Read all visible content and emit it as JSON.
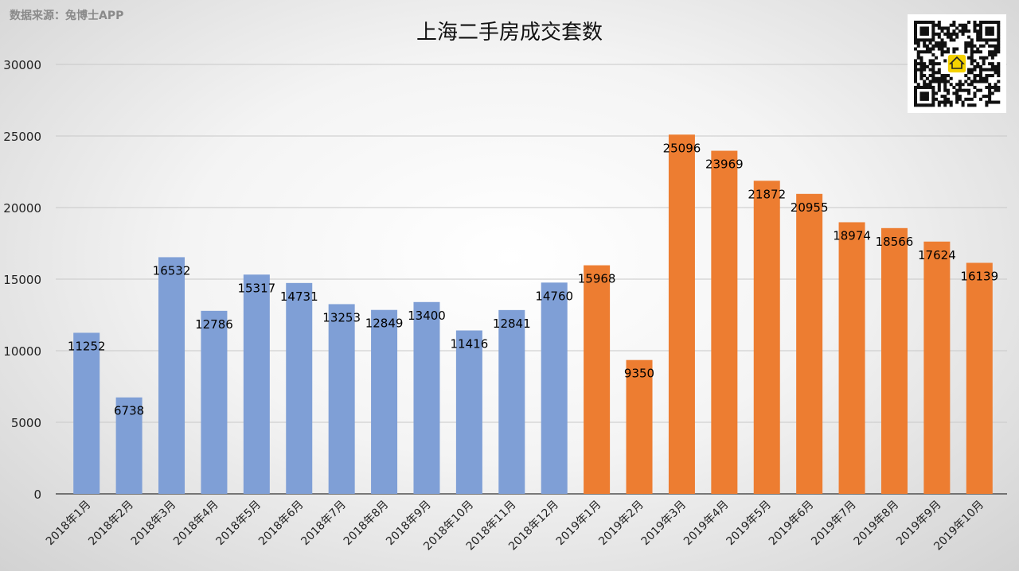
{
  "source_note": "数据来源：兔博士APP",
  "qr_code": {
    "icon": "qr-code-with-house-logo",
    "logo_color": "#f5d200"
  },
  "chart_data": {
    "type": "bar",
    "title": "上海二手房成交套数",
    "xlabel": "",
    "ylabel": "",
    "ylim": [
      0,
      30000
    ],
    "yticks": [
      0,
      5000,
      10000,
      15000,
      20000,
      25000,
      30000
    ],
    "grid": true,
    "categories": [
      "2018年1月",
      "2018年2月",
      "2018年3月",
      "2018年4月",
      "2018年5月",
      "2018年6月",
      "2018年7月",
      "2018年8月",
      "2018年9月",
      "2018年10月",
      "2018年11月",
      "2018年12月",
      "2019年1月",
      "2019年2月",
      "2019年3月",
      "2019年4月",
      "2019年5月",
      "2019年6月",
      "2019年7月",
      "2019年8月",
      "2019年9月",
      "2019年10月"
    ],
    "values": [
      11252,
      6738,
      16532,
      12786,
      15317,
      14731,
      13253,
      12849,
      13400,
      11416,
      12841,
      14760,
      15968,
      9350,
      25096,
      23969,
      21872,
      20955,
      18974,
      18566,
      17624,
      16139
    ],
    "colors": {
      "2018": "#7f9fd6",
      "2019": "#ed7d31"
    }
  }
}
